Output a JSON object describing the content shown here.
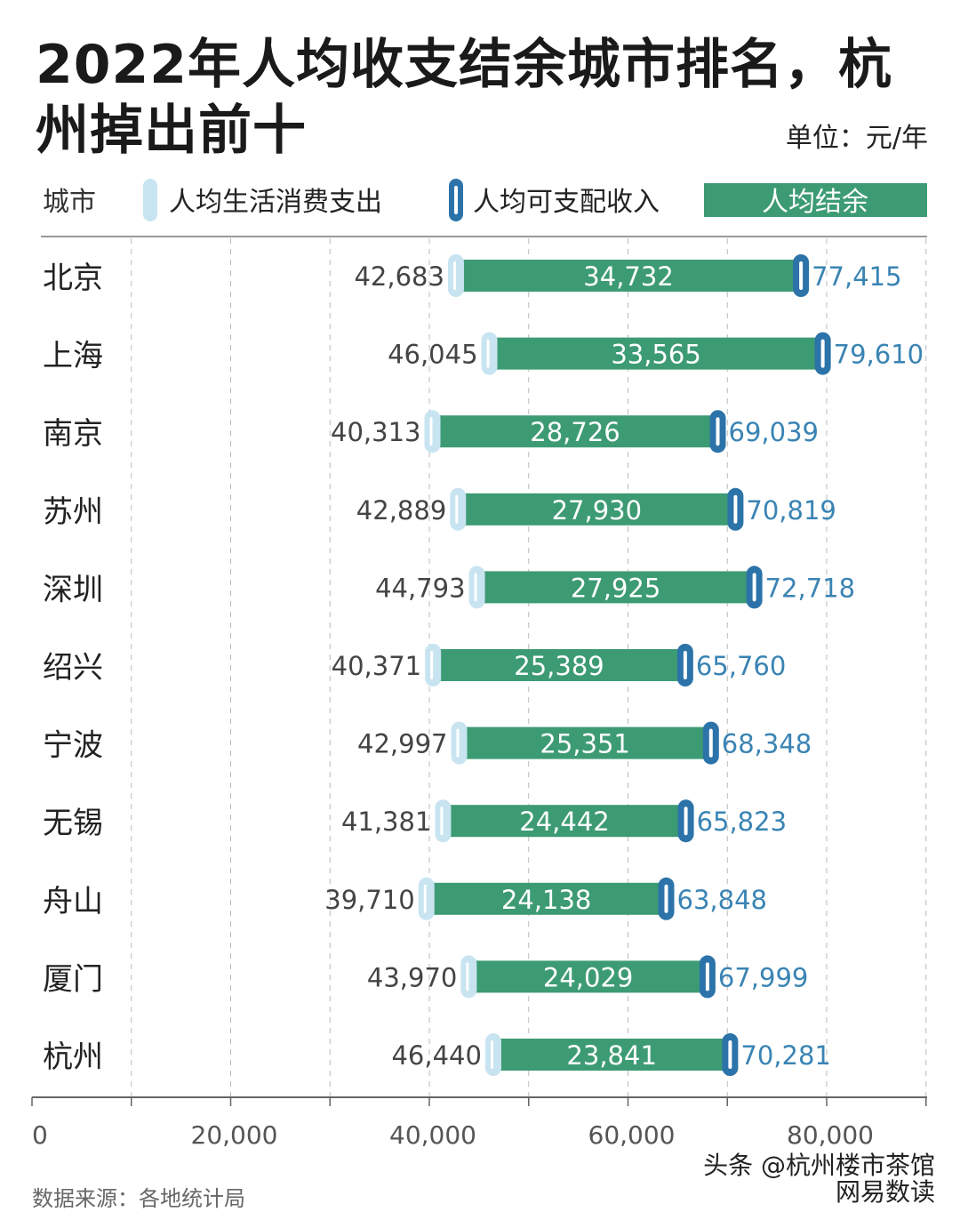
{
  "title": "2022年人均收支结余城市排名，杭州掉出前十",
  "unit": "单位：元/年",
  "source": "数据来源：各地统计局",
  "watermark": "头条 @杭州楼市茶馆",
  "logo_text": "网易数读",
  "colors": {
    "surplus": "#3d9b74",
    "expenditure": "#c8e4f1",
    "income": "#2c73a9",
    "income_label": "#3a84b4",
    "label": "#444444"
  },
  "chart_data": {
    "type": "dumbbell-bar",
    "legend": {
      "category_header": "城市",
      "expenditure": "人均生活消费支出",
      "income": "人均可支配收入",
      "surplus": "人均结余"
    },
    "categories": [
      "北京",
      "上海",
      "南京",
      "苏州",
      "深圳",
      "绍兴",
      "宁波",
      "无锡",
      "舟山",
      "厦门",
      "杭州"
    ],
    "series": [
      {
        "name": "人均生活消费支出",
        "values": [
          42683,
          46045,
          40313,
          42889,
          44793,
          40371,
          42997,
          41381,
          39710,
          43970,
          46440
        ]
      },
      {
        "name": "人均可支配收入",
        "values": [
          77415,
          79610,
          69039,
          70819,
          72718,
          65760,
          68348,
          65823,
          63848,
          67999,
          70281
        ]
      },
      {
        "name": "人均结余",
        "values": [
          34732,
          33565,
          28726,
          27930,
          27925,
          25389,
          25351,
          24442,
          24138,
          24029,
          23841
        ]
      }
    ],
    "xlim": [
      0,
      90000
    ],
    "xticks": [
      0,
      20000,
      40000,
      60000,
      80000
    ],
    "xtick_labels": [
      "0",
      "20,000",
      "40,000",
      "60,000",
      "80,000"
    ],
    "grid": "vertical dashed every 10,000"
  }
}
